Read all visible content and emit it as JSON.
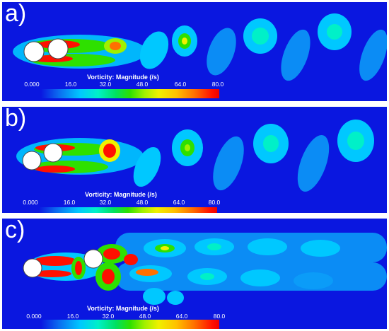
{
  "panels": [
    {
      "label": "a)"
    },
    {
      "label": "b)"
    },
    {
      "label": "c)"
    }
  ],
  "colorbar": {
    "title": "Vorticity: Magnitude (/s)",
    "ticks": [
      "0.000",
      "16.0",
      "32.0",
      "48.0",
      "64.0",
      "80.0"
    ]
  },
  "colors": {
    "background": "#0a17e0",
    "low": "#00c8ff",
    "mid": "#2ee000",
    "high": "#ff1000",
    "cylinder": "#ffffff"
  }
}
